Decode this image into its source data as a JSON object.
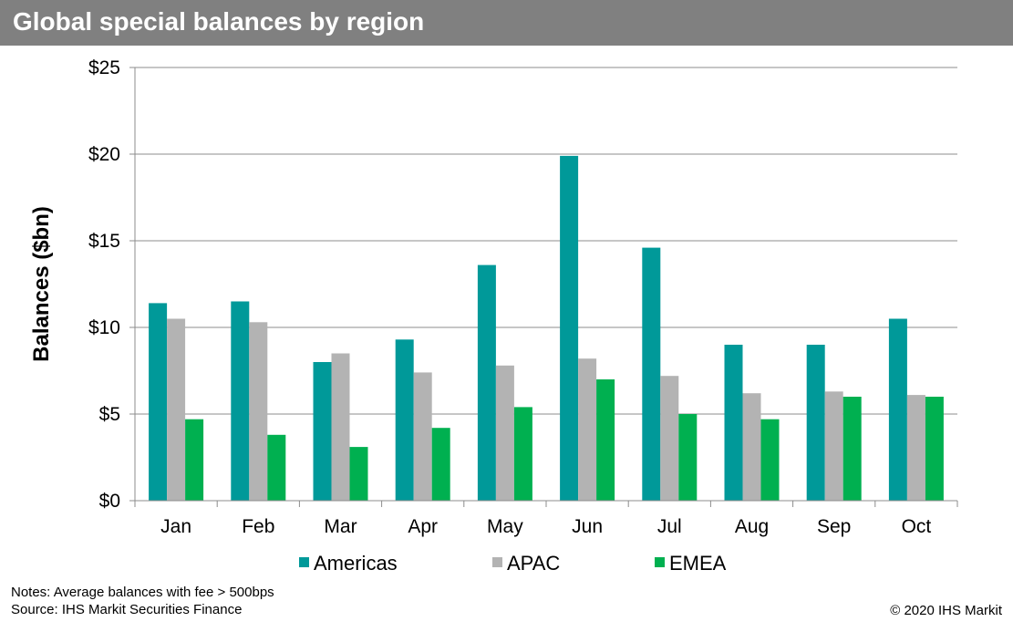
{
  "title": "Global special balances by region",
  "notes": "Notes:  Average balances with fee > 500bps",
  "source": "Source: IHS Markit  Securities Finance",
  "copyright": "© 2020 IHS Markit",
  "chart_data": {
    "type": "bar",
    "title": "Global special balances by region",
    "xlabel": "",
    "ylabel": "Balances ($bn)",
    "ylim": [
      0,
      25
    ],
    "yticks": [
      0,
      5,
      10,
      15,
      20,
      25
    ],
    "ytick_labels": [
      "$0",
      "$5",
      "$10",
      "$15",
      "$20",
      "$25"
    ],
    "grid": true,
    "legend": "bottom",
    "categories": [
      "Jan",
      "Feb",
      "Mar",
      "Apr",
      "May",
      "Jun",
      "Jul",
      "Aug",
      "Sep",
      "Oct"
    ],
    "series": [
      {
        "name": "Americas",
        "color": "#009999",
        "values": [
          11.4,
          11.5,
          8.0,
          9.3,
          13.6,
          19.9,
          14.6,
          9.0,
          9.0,
          10.5
        ]
      },
      {
        "name": "APAC",
        "color": "#B3B3B3",
        "values": [
          10.5,
          10.3,
          8.5,
          7.4,
          7.8,
          8.2,
          7.2,
          6.2,
          6.3,
          6.1
        ]
      },
      {
        "name": "EMEA",
        "color": "#00B050",
        "values": [
          4.7,
          3.8,
          3.1,
          4.2,
          5.4,
          7.0,
          5.0,
          4.7,
          6.0,
          6.0
        ]
      }
    ]
  }
}
